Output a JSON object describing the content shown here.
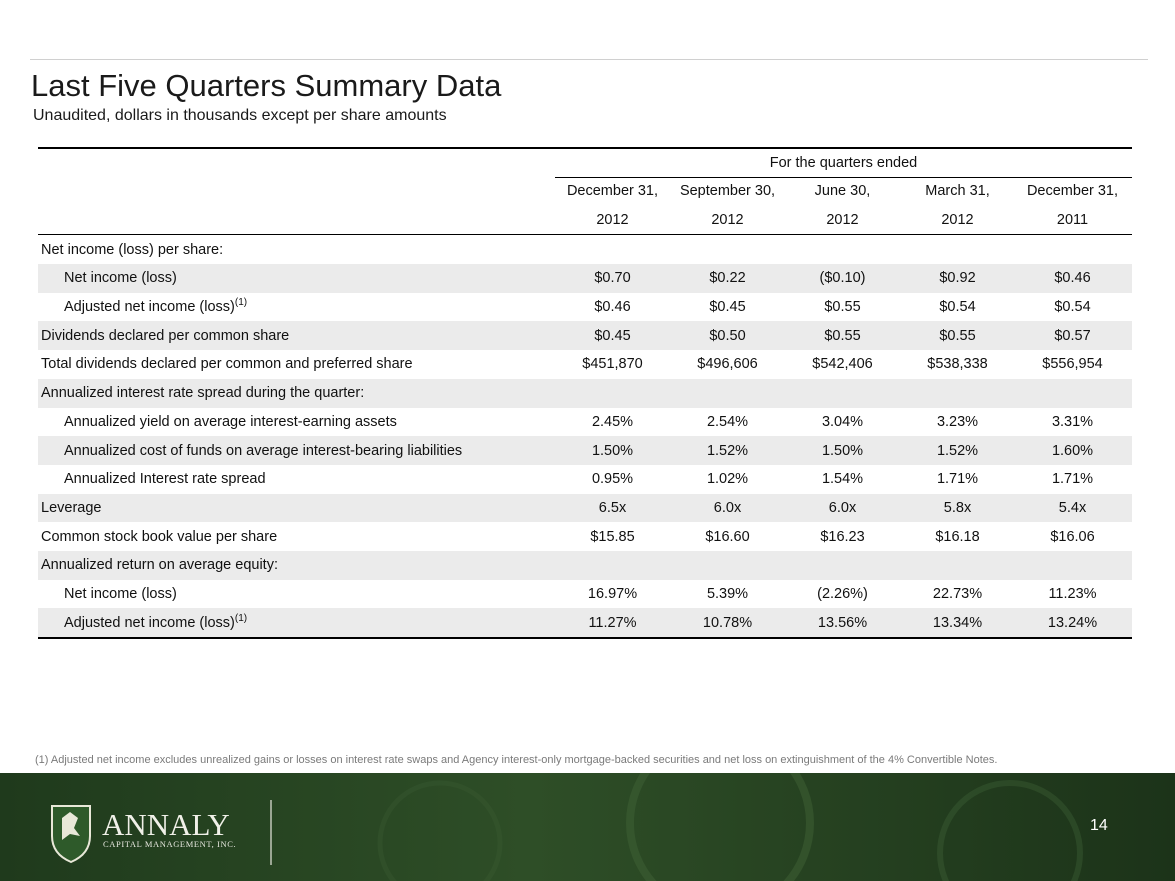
{
  "header": {
    "title": "Last Five Quarters Summary Data",
    "subtitle": "Unaudited, dollars in thousands except per share amounts"
  },
  "table": {
    "group_header": "For the quarters ended",
    "columns": [
      [
        "December 31,",
        "2012"
      ],
      [
        "September 30,",
        "2012"
      ],
      [
        "June 30,",
        "2012"
      ],
      [
        "March 31,",
        "2012"
      ],
      [
        "December 31,",
        "2011"
      ]
    ],
    "rows": [
      {
        "label": "Net income (loss) per share:",
        "indent": false,
        "values": []
      },
      {
        "label": "Net income (loss)",
        "indent": true,
        "values": [
          "$0.70",
          "$0.22",
          "($0.10)",
          "$0.92",
          "$0.46"
        ]
      },
      {
        "label": "Adjusted net income (loss)",
        "note": "(1)",
        "indent": true,
        "values": [
          "$0.46",
          "$0.45",
          "$0.55",
          "$0.54",
          "$0.54"
        ]
      },
      {
        "label": "Dividends declared per common share",
        "indent": false,
        "values": [
          "$0.45",
          "$0.50",
          "$0.55",
          "$0.55",
          "$0.57"
        ]
      },
      {
        "label": "Total dividends declared per common and preferred share",
        "indent": false,
        "values": [
          "$451,870",
          "$496,606",
          "$542,406",
          "$538,338",
          "$556,954"
        ]
      },
      {
        "label": "Annualized interest rate spread during the quarter:",
        "indent": false,
        "values": []
      },
      {
        "label": "Annualized yield on average interest-earning assets",
        "indent": true,
        "values": [
          "2.45%",
          "2.54%",
          "3.04%",
          "3.23%",
          "3.31%"
        ]
      },
      {
        "label": "Annualized cost of funds on average interest-bearing liabilities",
        "indent": true,
        "values": [
          "1.50%",
          "1.52%",
          "1.50%",
          "1.52%",
          "1.60%"
        ]
      },
      {
        "label": "Annualized Interest rate spread",
        "indent": true,
        "values": [
          "0.95%",
          "1.02%",
          "1.54%",
          "1.71%",
          "1.71%"
        ]
      },
      {
        "label": "Leverage",
        "indent": false,
        "values": [
          "6.5x",
          "6.0x",
          "6.0x",
          "5.8x",
          "5.4x"
        ]
      },
      {
        "label": "Common stock book value per share",
        "indent": false,
        "values": [
          "$15.85",
          "$16.60",
          "$16.23",
          "$16.18",
          "$16.06"
        ]
      },
      {
        "label": "Annualized return on average equity:",
        "indent": false,
        "values": []
      },
      {
        "label": "Net income (loss)",
        "indent": true,
        "values": [
          "16.97%",
          "5.39%",
          "(2.26%)",
          "22.73%",
          "11.23%"
        ]
      },
      {
        "label": "Adjusted net income (loss)",
        "note": "(1)",
        "indent": true,
        "values": [
          "11.27%",
          "10.78%",
          "13.56%",
          "13.34%",
          "13.24%"
        ]
      }
    ]
  },
  "footnote": "(1) Adjusted net income excludes unrealized gains or losses on interest rate swaps and Agency interest-only mortgage-backed securities and net loss on extinguishment of the 4% Convertible Notes.",
  "logo": {
    "name": "ANNALY",
    "tagline": "CAPITAL MANAGEMENT, INC."
  },
  "page_number": "14"
}
